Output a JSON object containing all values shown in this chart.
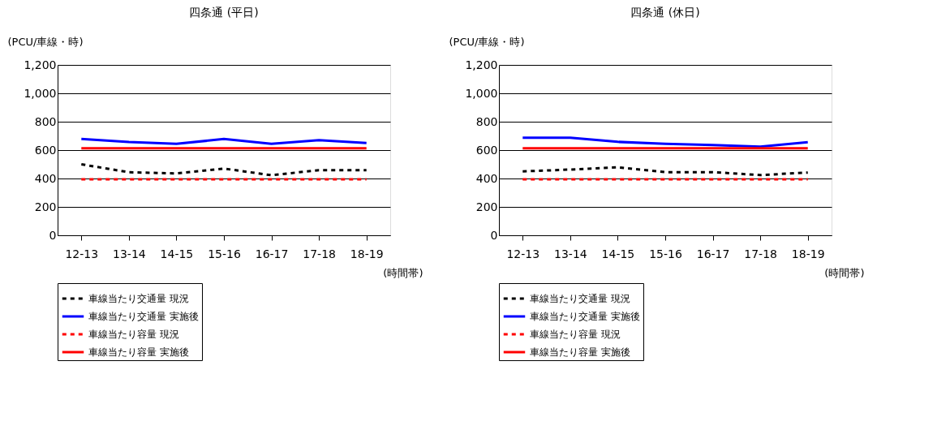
{
  "chart_data": [
    {
      "type": "line",
      "title": "四条通 (平日)",
      "xlabel": "(時間帯)",
      "ylabel": "(PCU/車線・時)",
      "categories": [
        "12-13",
        "13-14",
        "14-15",
        "15-16",
        "16-17",
        "17-18",
        "18-19"
      ],
      "ylim": [
        0,
        1200
      ],
      "yticks": [
        0,
        200,
        400,
        600,
        800,
        {
          "value": 1000,
          "label": "1,000"
        },
        {
          "value": 1200,
          "label": "1,200"
        }
      ],
      "grid": "y",
      "legend": "bottom left",
      "marker": "none",
      "series": [
        {
          "name": "車線当たり交通量 現況",
          "color": "#000000",
          "line_style": "dashed",
          "values": [
            500,
            444,
            436,
            470,
            423,
            459,
            459
          ]
        },
        {
          "name": "車線当たり交通量 実施後",
          "color": "#0000ff",
          "line_style": "solid",
          "values": [
            678,
            657,
            644,
            678,
            644,
            670,
            650
          ]
        },
        {
          "name": "車線当たり容量 現況",
          "color": "#ff0000",
          "line_style": "dashed",
          "values": [
            395,
            395,
            395,
            395,
            395,
            395,
            395
          ]
        },
        {
          "name": "車線当たり容量 実施後",
          "color": "#ff0000",
          "line_style": "solid",
          "values": [
            613,
            613,
            613,
            613,
            613,
            613,
            613
          ]
        }
      ]
    },
    {
      "type": "line",
      "title": "四条通 (休日)",
      "xlabel": "(時間帯)",
      "ylabel": "(PCU/車線・時)",
      "categories": [
        "12-13",
        "13-14",
        "14-15",
        "15-16",
        "16-17",
        "17-18",
        "18-19"
      ],
      "ylim": [
        0,
        1200
      ],
      "yticks": [
        0,
        200,
        400,
        600,
        800,
        {
          "value": 1000,
          "label": "1,000"
        },
        {
          "value": 1200,
          "label": "1,200"
        }
      ],
      "grid": "y",
      "legend": "bottom left",
      "marker": "none",
      "series": [
        {
          "name": "車線当たり交通量 現況",
          "color": "#000000",
          "line_style": "dashed",
          "values": [
            450,
            463,
            479,
            445,
            445,
            424,
            442
          ]
        },
        {
          "name": "車線当たり交通量 実施後",
          "color": "#0000ff",
          "line_style": "solid",
          "values": [
            687,
            687,
            658,
            644,
            636,
            624,
            656
          ]
        },
        {
          "name": "車線当たり容量 現況",
          "color": "#ff0000",
          "line_style": "dashed",
          "values": [
            395,
            395,
            395,
            395,
            395,
            395,
            395
          ]
        },
        {
          "name": "車線当たり容量 実施後",
          "color": "#ff0000",
          "line_style": "solid",
          "values": [
            613,
            613,
            613,
            613,
            613,
            613,
            613
          ]
        }
      ]
    }
  ]
}
